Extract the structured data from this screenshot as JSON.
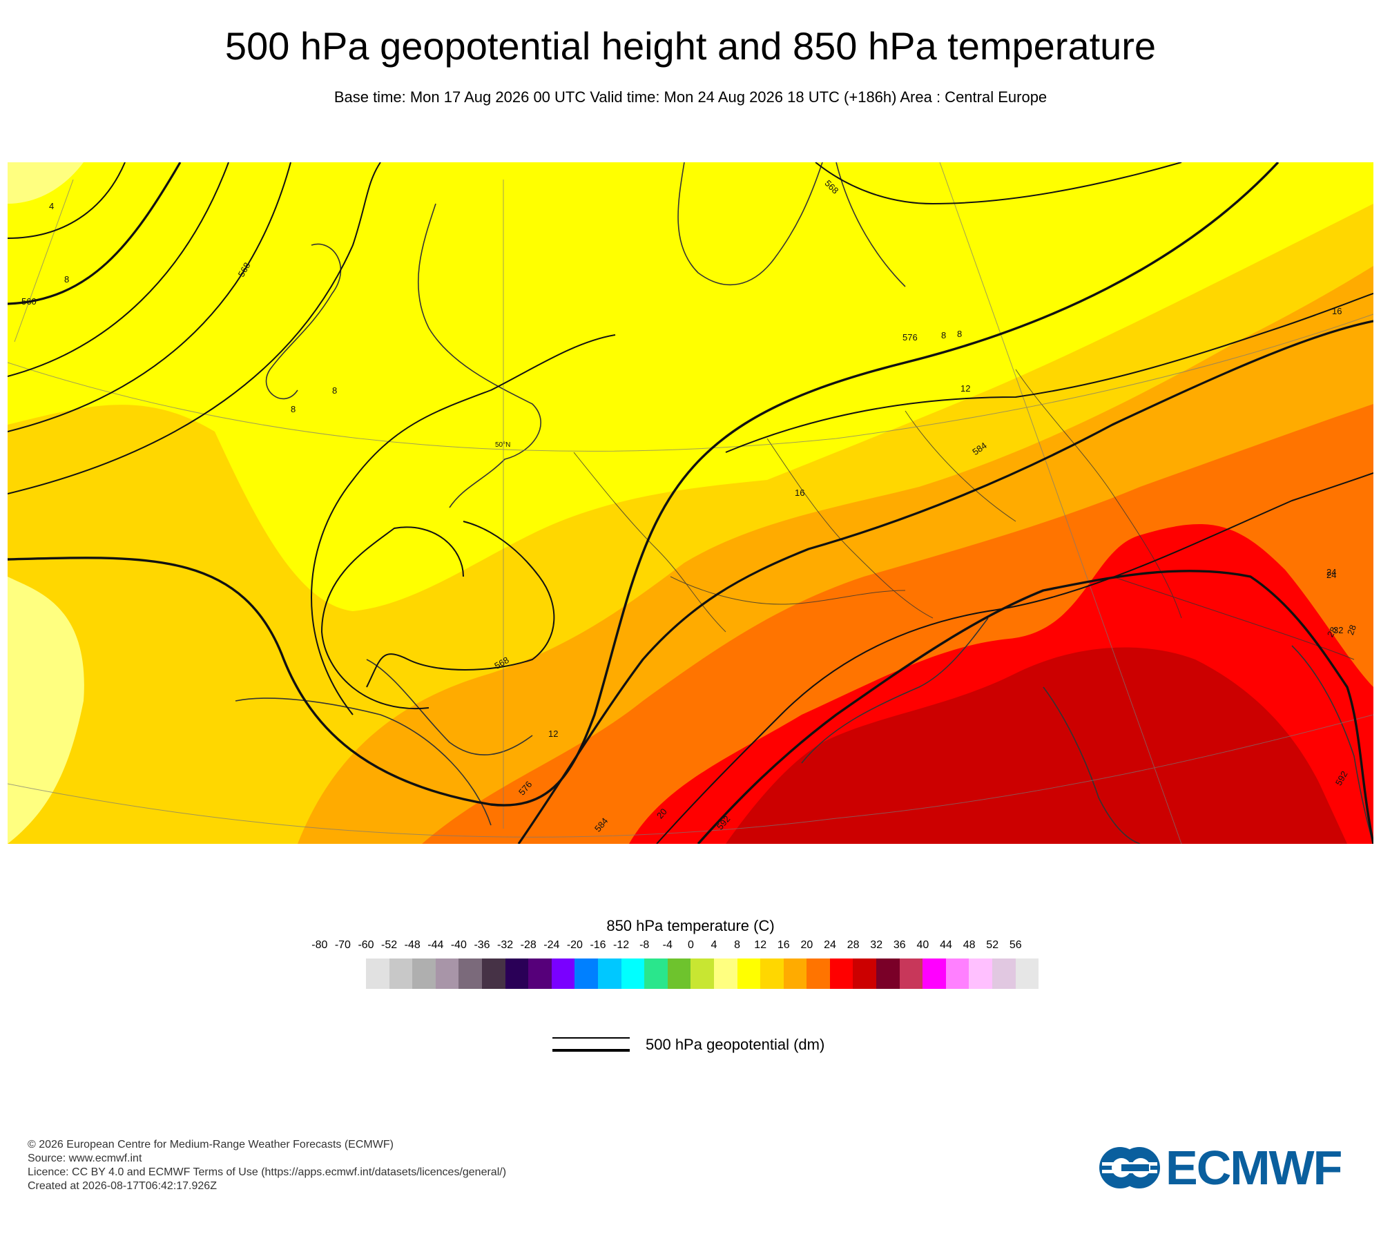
{
  "title": "500 hPa geopotential height and 850 hPa temperature",
  "subtitle": "Base time: Mon 17 Aug 2026 00 UTC Valid time: Mon 24 Aug 2026 18 UTC (+186h) Area : Central Europe",
  "map": {
    "contour_labels": [
      "4",
      "8",
      "560",
      "568",
      "8",
      "8",
      "8",
      "568",
      "576",
      "8",
      "12",
      "584",
      "16",
      "568",
      "12",
      "576",
      "584",
      "20",
      "592",
      "24",
      "28",
      "32",
      "16",
      "24",
      "28",
      "592",
      "50°N"
    ],
    "field_colors": {
      "temp_0_4": "#ffff80",
      "temp_4_8": "#ffff00",
      "temp_8_12": "#ffd700",
      "temp_12_16": "#ffab00",
      "temp_16_20": "#ff7400",
      "temp_20_24": "#ff0000",
      "temp_24_28": "#cc0000"
    }
  },
  "colorbar": {
    "title": "850 hPa temperature (C)",
    "ticks": [
      "-80",
      "-70",
      "-60",
      "-52",
      "-48",
      "-44",
      "-40",
      "-36",
      "-32",
      "-28",
      "-24",
      "-20",
      "-16",
      "-12",
      "-8",
      "-4",
      "0",
      "4",
      "8",
      "12",
      "16",
      "20",
      "24",
      "28",
      "32",
      "36",
      "40",
      "44",
      "48",
      "52",
      "56"
    ],
    "colors": [
      "#e1e1e1",
      "#c8c8c8",
      "#afafaf",
      "#a895a8",
      "#7b6a7b",
      "#463246",
      "#2a0057",
      "#56007a",
      "#7a00ff",
      "#0080ff",
      "#00c8ff",
      "#00ffff",
      "#2ae68c",
      "#6ec32d",
      "#c8e632",
      "#ffff80",
      "#ffff00",
      "#ffd700",
      "#ffab00",
      "#ff7400",
      "#ff0000",
      "#cc0000",
      "#7a0028",
      "#c8375a",
      "#ff00ff",
      "#ff80ff",
      "#ffc0ff",
      "#e1c8e1",
      "#e6e6e6"
    ]
  },
  "legend": {
    "geopotential_label": "500 hPa geopotential (dm)"
  },
  "footer": {
    "line1": "© 2026 European Centre for Medium-Range Weather Forecasts (ECMWF)",
    "line2": "Source: www.ecmwf.int",
    "line3": "Licence: CC BY 4.0 and ECMWF Terms of Use (https://apps.ecmwf.int/datasets/licences/general/)",
    "line4": "Created at 2026-08-17T06:42:17.926Z"
  },
  "logo": {
    "text": "ECMWF",
    "color": "#0a5f9e"
  }
}
